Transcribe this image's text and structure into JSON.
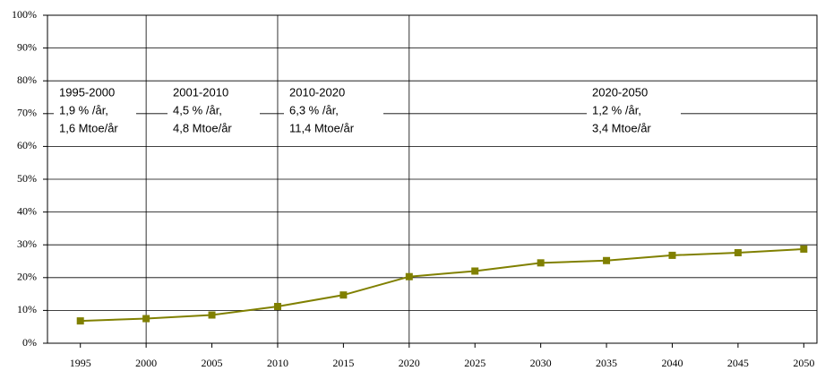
{
  "chart_data": {
    "type": "line",
    "x": [
      1995,
      2000,
      2005,
      2010,
      2015,
      2020,
      2025,
      2030,
      2035,
      2040,
      2045,
      2050
    ],
    "series": [
      {
        "color": "#808000",
        "values": [
          6.8,
          7.5,
          8.6,
          11.2,
          14.7,
          20.3,
          22.0,
          24.5,
          25.2,
          26.8,
          27.6,
          28.7
        ]
      }
    ],
    "xlim": [
      1992.5,
      2051
    ],
    "xticks": [
      1995,
      2000,
      2005,
      2010,
      2015,
      2020,
      2025,
      2030,
      2035,
      2040,
      2045,
      2050
    ],
    "ylim": [
      0,
      100
    ],
    "yticks": [
      {
        "value": 0,
        "label": "0%"
      },
      {
        "value": 10,
        "label": "10%"
      },
      {
        "value": 20,
        "label": "20%"
      },
      {
        "value": 30,
        "label": "30%"
      },
      {
        "value": 40,
        "label": "40%"
      },
      {
        "value": 50,
        "label": "50%"
      },
      {
        "value": 60,
        "label": "60%"
      },
      {
        "value": 70,
        "label": "70%"
      },
      {
        "value": 80,
        "label": "80%"
      },
      {
        "value": 90,
        "label": "90%"
      },
      {
        "value": 100,
        "label": "100%"
      }
    ],
    "grid": true,
    "dividers": [
      2000,
      2010,
      2020
    ],
    "annotations": [
      [
        "1995-2000",
        "1,9 % /år,",
        "1,6 Mtoe/år"
      ],
      [
        "2001-2010",
        "4,5 % /år,",
        "4,8 Mtoe/år"
      ],
      [
        "2010-2020",
        "6,3 % /år,",
        "11,4 Mtoe/år"
      ],
      [
        "2020-2050",
        "1,2 % /år,",
        "3,4 Mtoe/år"
      ]
    ]
  }
}
